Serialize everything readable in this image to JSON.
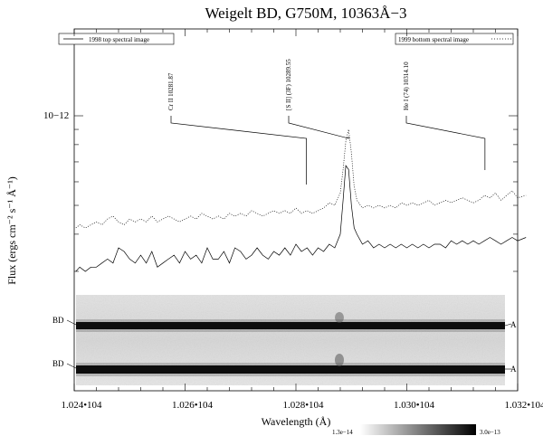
{
  "chart_data": {
    "type": "line",
    "title": "Weigelt BD, G750M, 10363Å−3",
    "xlabel": "Wavelength (Å)",
    "ylabel": "Flux (ergs cm⁻² s⁻¹ Å⁻¹)",
    "y_log_scale": true,
    "xlim": [
      10240,
      10320
    ],
    "x_ticks": [
      10240,
      10260,
      10280,
      10300,
      10320
    ],
    "x_tick_labels": [
      "1.024•104",
      "1.026•104",
      "1.028•104",
      "1.030•104",
      "1.032•104"
    ],
    "y_tick_label": "10−12",
    "grid": false,
    "legend": [
      {
        "label": "1998 top spectral image",
        "position": "top-left",
        "style": "solid"
      },
      {
        "label": "1999 bottom spectral image",
        "position": "top-right",
        "style": "dotted"
      }
    ],
    "annotations": [
      {
        "label": "Cr II 10281.87",
        "x": 10281.9
      },
      {
        "label": "[S II] (3F) 10289.55",
        "x": 10289.5
      },
      {
        "label": "He I (74) 10314.10",
        "x": 10314.1
      }
    ],
    "series": [
      {
        "name": "1998 top spectral image",
        "style": "solid",
        "x": [
          10240.3,
          10241,
          10242,
          10243,
          10244,
          10245,
          10246,
          10247,
          10248,
          10249,
          10250,
          10251,
          10252,
          10253,
          10254,
          10255,
          10256,
          10257,
          10258,
          10259,
          10260,
          10261,
          10262,
          10263,
          10264,
          10265,
          10266,
          10267,
          10268,
          10269,
          10270,
          10271,
          10272,
          10273,
          10274,
          10275,
          10276,
          10277,
          10278,
          10279,
          10280,
          10281,
          10282,
          10283,
          10284,
          10285,
          10286,
          10287,
          10288,
          10288.5,
          10289,
          10289.5,
          10290,
          10290.5,
          10291,
          10292,
          10293,
          10294,
          10295,
          10296,
          10297,
          10298,
          10299,
          10300,
          10301,
          10302,
          10303,
          10304,
          10305,
          10306,
          10307,
          10308,
          10309,
          10310,
          10311,
          10312,
          10313,
          10314,
          10315,
          10316,
          10317,
          10318,
          10319,
          10320,
          10321.5
        ],
        "y": [
          0.3,
          0.31,
          0.3,
          0.31,
          0.31,
          0.32,
          0.33,
          0.32,
          0.36,
          0.35,
          0.33,
          0.32,
          0.34,
          0.32,
          0.35,
          0.31,
          0.32,
          0.33,
          0.34,
          0.32,
          0.35,
          0.33,
          0.34,
          0.32,
          0.36,
          0.33,
          0.33,
          0.35,
          0.32,
          0.36,
          0.35,
          0.33,
          0.34,
          0.36,
          0.34,
          0.33,
          0.35,
          0.34,
          0.36,
          0.34,
          0.37,
          0.35,
          0.36,
          0.34,
          0.36,
          0.35,
          0.37,
          0.36,
          0.4,
          0.52,
          0.68,
          0.66,
          0.5,
          0.42,
          0.4,
          0.37,
          0.38,
          0.36,
          0.37,
          0.36,
          0.37,
          0.36,
          0.37,
          0.36,
          0.37,
          0.36,
          0.37,
          0.36,
          0.37,
          0.37,
          0.36,
          0.38,
          0.37,
          0.38,
          0.37,
          0.38,
          0.37,
          0.38,
          0.39,
          0.38,
          0.37,
          0.38,
          0.39,
          0.38,
          0.39
        ]
      },
      {
        "name": "1999 bottom spectral image",
        "style": "dotted",
        "x": [
          10240.3,
          10241,
          10242,
          10243,
          10244,
          10245,
          10246,
          10247,
          10248,
          10249,
          10250,
          10251,
          10252,
          10253,
          10254,
          10255,
          10256,
          10257,
          10258,
          10259,
          10260,
          10261,
          10262,
          10263,
          10264,
          10265,
          10266,
          10267,
          10268,
          10269,
          10270,
          10271,
          10272,
          10273,
          10274,
          10275,
          10276,
          10277,
          10278,
          10279,
          10280,
          10281,
          10282,
          10283,
          10284,
          10285,
          10286,
          10287,
          10288,
          10288.5,
          10289,
          10289.5,
          10290,
          10290.5,
          10291,
          10292,
          10293,
          10294,
          10295,
          10296,
          10297,
          10298,
          10299,
          10300,
          10301,
          10302,
          10303,
          10304,
          10305,
          10306,
          10307,
          10308,
          10309,
          10310,
          10311,
          10312,
          10313,
          10314,
          10315,
          10316,
          10317,
          10318,
          10319,
          10320,
          10321.5
        ],
        "y": [
          0.42,
          0.43,
          0.42,
          0.43,
          0.44,
          0.43,
          0.45,
          0.46,
          0.44,
          0.43,
          0.45,
          0.44,
          0.45,
          0.44,
          0.46,
          0.44,
          0.45,
          0.46,
          0.45,
          0.44,
          0.45,
          0.46,
          0.45,
          0.47,
          0.46,
          0.45,
          0.46,
          0.45,
          0.47,
          0.46,
          0.47,
          0.46,
          0.48,
          0.47,
          0.46,
          0.47,
          0.48,
          0.47,
          0.48,
          0.47,
          0.49,
          0.47,
          0.48,
          0.47,
          0.48,
          0.49,
          0.51,
          0.5,
          0.55,
          0.66,
          0.82,
          0.9,
          0.75,
          0.58,
          0.52,
          0.49,
          0.5,
          0.49,
          0.5,
          0.49,
          0.5,
          0.49,
          0.51,
          0.5,
          0.51,
          0.5,
          0.51,
          0.52,
          0.5,
          0.51,
          0.52,
          0.51,
          0.52,
          0.53,
          0.52,
          0.51,
          0.52,
          0.54,
          0.53,
          0.55,
          0.52,
          0.54,
          0.56,
          0.53,
          0.54
        ]
      }
    ],
    "spectral_images": [
      {
        "left_label": "BD",
        "right_label": "A"
      },
      {
        "left_label": "BD",
        "right_label": "A"
      }
    ],
    "colorbar": {
      "min_label": "1.3e−14",
      "max_label": "3.0e−13"
    }
  }
}
